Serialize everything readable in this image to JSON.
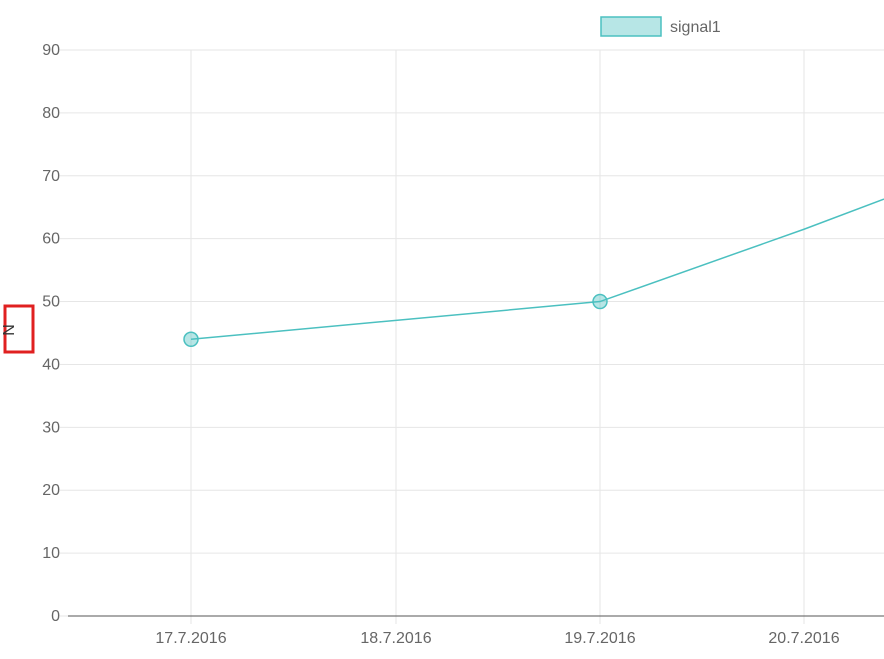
{
  "chart_data": {
    "type": "line",
    "title": "",
    "xlabel": "",
    "ylabel": "N",
    "x_categories": [
      "17.7.2016",
      "18.7.2016",
      "19.7.2016",
      "20.7.2016"
    ],
    "ylim": [
      0,
      90
    ],
    "y_ticks": [
      0,
      10,
      20,
      30,
      40,
      50,
      60,
      70,
      80,
      90
    ],
    "grid": true,
    "legend": "top",
    "series": [
      {
        "name": "signal1",
        "color": "#4bc0c0",
        "fill": "rgba(75,192,192,0.4)",
        "points": [
          {
            "x": "17.7.2016",
            "y": 44,
            "marker": true
          },
          {
            "x": "19.7.2016",
            "y": 50,
            "marker": true
          },
          {
            "x": "20.7.2016",
            "y": 61.5,
            "marker": false
          },
          {
            "x": "20.7.2016 (past edge)",
            "y": 66.3,
            "marker": false
          }
        ]
      }
    ],
    "highlight": {
      "target": "ylabel",
      "color": "#e02020"
    }
  }
}
